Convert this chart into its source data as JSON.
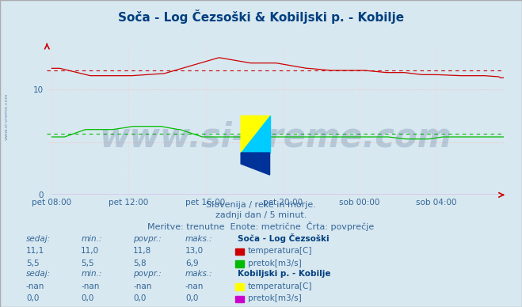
{
  "title": "Soča - Log Čezsoški & Kobiljski p. - Kobilje",
  "title_color": "#003f7f",
  "title_fontsize": 11,
  "bg_color": "#d8e8f0",
  "plot_bg_color": "#d8e8f0",
  "grid_color": "#ffaaaa",
  "grid_v_color": "#ffcccc",
  "axis_color": "#cc0000",
  "tick_color": "#336699",
  "ylim": [
    0,
    14.4
  ],
  "yticks": [
    0,
    10
  ],
  "x_labels": [
    "pet 08:00",
    "pet 12:00",
    "pet 16:00",
    "pet 20:00",
    "sob 00:00",
    "sob 04:00"
  ],
  "x_label_color": "#336699",
  "footer_lines": [
    "Slovenija / reke in morje.",
    "zadnji dan / 5 minut.",
    "Meritve: trenutne  Enote: metrične  Črta: povprečje"
  ],
  "footer_color": "#336699",
  "footer_fontsize": 8,
  "watermark": "www.si-vreme.com",
  "watermark_color": "#1a3a6e",
  "watermark_alpha": 0.18,
  "watermark_fontsize": 30,
  "legend_title1": "Soča - Log Čezsoški",
  "legend_title2": "Kobiljski p. - Kobilje",
  "legend_color": "#003f7f",
  "stat_labels": [
    "sedaj:",
    "min.:",
    "povpr.:",
    "maks.:"
  ],
  "stat_color": "#336699",
  "stat1_temp": [
    11.1,
    11.0,
    11.8,
    13.0
  ],
  "stat1_flow": [
    5.5,
    5.5,
    5.8,
    6.9
  ],
  "stat2_temp": [
    "-nan",
    "-nan",
    "-nan",
    "-nan"
  ],
  "stat2_flow": [
    0.0,
    0.0,
    0.0,
    0.0
  ],
  "soca_temp_color": "#cc0000",
  "soca_flow_color": "#00bb00",
  "kob_temp_color": "#ffff00",
  "kob_flow_color": "#cc00cc",
  "avg_line_color_temp": "#cc0000",
  "avg_line_color_flow": "#00bb00",
  "n_points": 288,
  "logo_colors": [
    "#ffff00",
    "#00ccff",
    "#003399"
  ],
  "side_watermark": "www.si-vreme.com"
}
